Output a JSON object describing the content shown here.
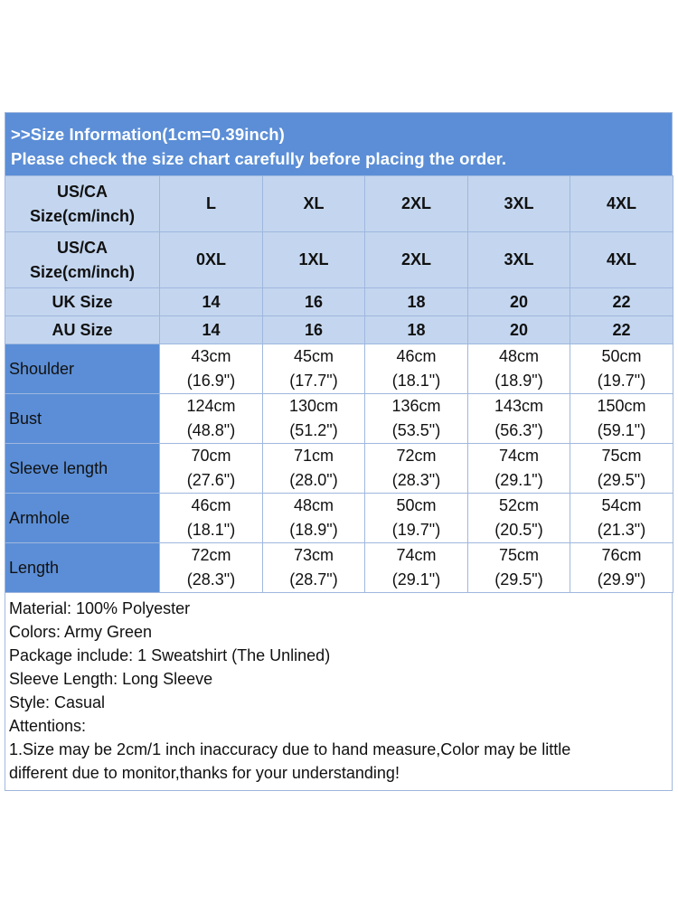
{
  "title": {
    "line1": ">>Size Information(1cm=0.39inch)",
    "line2": "Please check the size chart carefully before placing the order."
  },
  "header_rows": [
    {
      "label_lines": [
        "US/CA",
        "Size(cm/inch)"
      ],
      "values": [
        "L",
        "XL",
        "2XL",
        "3XL",
        "4XL"
      ]
    },
    {
      "label_lines": [
        "US/CA",
        "Size(cm/inch)"
      ],
      "values": [
        "0XL",
        "1XL",
        "2XL",
        "3XL",
        "4XL"
      ]
    },
    {
      "label_lines": [
        "UK Size"
      ],
      "values": [
        "14",
        "16",
        "18",
        "20",
        "22"
      ]
    },
    {
      "label_lines": [
        "AU Size"
      ],
      "values": [
        "14",
        "16",
        "18",
        "20",
        "22"
      ]
    }
  ],
  "measurements": [
    {
      "label": "Shoulder",
      "cells": [
        [
          "43cm",
          "(16.9\")"
        ],
        [
          "45cm",
          "(17.7\")"
        ],
        [
          "46cm",
          "(18.1\")"
        ],
        [
          "48cm",
          "(18.9\")"
        ],
        [
          "50cm",
          "(19.7\")"
        ]
      ]
    },
    {
      "label": "Bust",
      "cells": [
        [
          "124cm",
          "(48.8\")"
        ],
        [
          "130cm",
          "(51.2\")"
        ],
        [
          "136cm",
          "(53.5\")"
        ],
        [
          "143cm",
          "(56.3\")"
        ],
        [
          "150cm",
          "(59.1\")"
        ]
      ]
    },
    {
      "label": "Sleeve length",
      "cells": [
        [
          "70cm",
          "(27.6\")"
        ],
        [
          "71cm",
          "(28.0\")"
        ],
        [
          "72cm",
          "(28.3\")"
        ],
        [
          "74cm",
          "(29.1\")"
        ],
        [
          "75cm",
          "(29.5\")"
        ]
      ]
    },
    {
      "label": "Armhole",
      "cells": [
        [
          "46cm",
          "(18.1\")"
        ],
        [
          "48cm",
          "(18.9\")"
        ],
        [
          "50cm",
          "(19.7\")"
        ],
        [
          "52cm",
          "(20.5\")"
        ],
        [
          "54cm",
          "(21.3\")"
        ]
      ]
    },
    {
      "label": "Length",
      "cells": [
        [
          "72cm",
          "(28.3\")"
        ],
        [
          "73cm",
          "(28.7\")"
        ],
        [
          "74cm",
          "(29.1\")"
        ],
        [
          "75cm",
          "(29.5\")"
        ],
        [
          "76cm",
          "(29.9\")"
        ]
      ]
    }
  ],
  "notes": [
    "Material: 100% Polyester",
    "Colors: Army Green",
    "Package include: 1 Sweatshirt (The Unlined)",
    "Sleeve Length: Long Sleeve",
    "Style: Casual",
    "Attentions:",
    "1.Size may be 2cm/1 inch inaccuracy due to hand measure,Color may be little",
    "different due to monitor,thanks for your understanding!"
  ],
  "colors": {
    "header_blue": "#5b8ed6",
    "light_blue": "#c4d6ef",
    "border": "#9fb7de"
  }
}
